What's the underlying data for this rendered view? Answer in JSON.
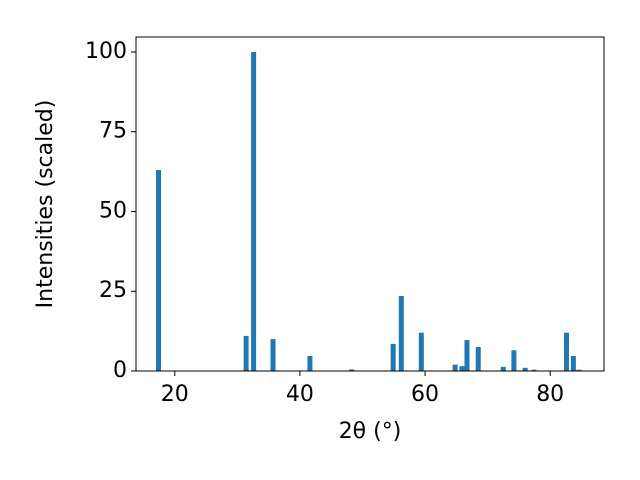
{
  "chart_data": {
    "type": "bar",
    "xlabel": "2θ (°)",
    "ylabel": "Intensities (scaled)",
    "x": [
      17.4,
      31.4,
      32.6,
      35.7,
      41.6,
      48.3,
      54.9,
      56.2,
      59.4,
      64.8,
      65.9,
      66.7,
      68.5,
      72.5,
      74.2,
      76.0,
      77.4,
      82.6,
      83.7,
      84.6
    ],
    "values": [
      63,
      11,
      100,
      10,
      4.7,
      0.5,
      8.5,
      23.5,
      12,
      2,
      1.5,
      9.7,
      7.5,
      1.3,
      6.5,
      1,
      0.4,
      12,
      4.7,
      0.4
    ],
    "color": "#1f77b4",
    "xlim": [
      13.8,
      88.6
    ],
    "xticks": [
      20,
      40,
      60,
      80
    ],
    "ylim": [
      0,
      104.7
    ],
    "yticks": [
      0,
      25,
      50,
      75,
      100
    ]
  }
}
